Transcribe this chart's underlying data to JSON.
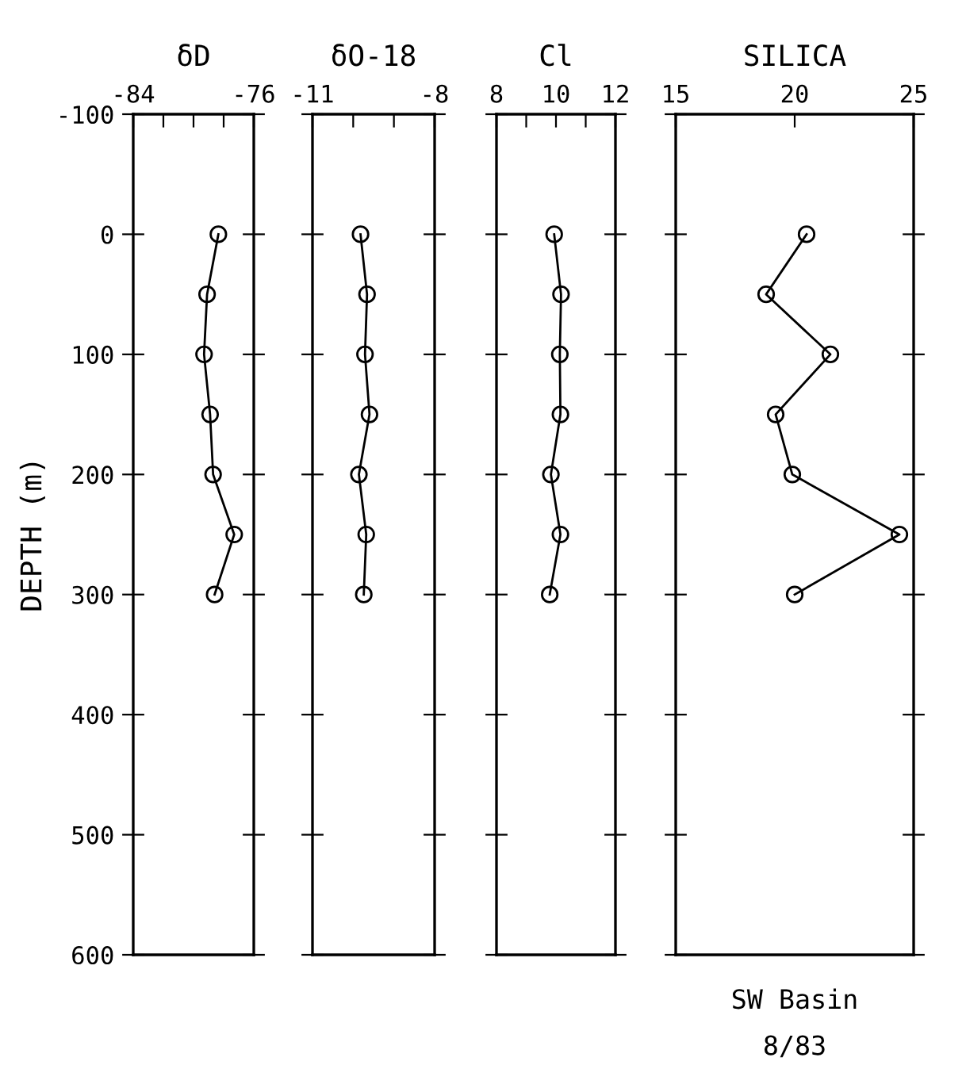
{
  "chart_data": [
    {
      "type": "line",
      "title": "δD",
      "ylabel": "DEPTH (m)",
      "marker": "circle",
      "line_style": "solid",
      "series": [
        {
          "color": "#000000",
          "x": [
            -78.35,
            -79.1,
            -79.3,
            -78.9,
            -78.7,
            -77.3,
            -78.6
          ],
          "values": [
            0,
            50,
            100,
            150,
            200,
            250,
            300
          ]
        }
      ],
      "xlim": [
        -84,
        -76
      ],
      "xticks": [
        -84,
        {
          "value": -82,
          "label": null
        },
        {
          "value": -80,
          "label": null
        },
        {
          "value": -78,
          "label": null
        },
        -76
      ],
      "ylim": [
        600,
        -100
      ],
      "yticks": [
        -100,
        0,
        100,
        200,
        300,
        400,
        500,
        600
      ]
    },
    {
      "type": "line",
      "title": "δO-18",
      "marker": "circle",
      "line_style": "solid",
      "tick_labels": "x",
      "series": [
        {
          "color": "#000000",
          "x": [
            -9.82,
            -9.66,
            -9.71,
            -9.6,
            -9.86,
            -9.68,
            -9.74
          ],
          "values": [
            0,
            50,
            100,
            150,
            200,
            250,
            300
          ]
        }
      ],
      "xlim": [
        -11,
        -8
      ],
      "xticks": [
        -11,
        {
          "value": -10,
          "label": null
        },
        {
          "value": -9,
          "label": null
        },
        -8
      ],
      "ylim": [
        600,
        -100
      ],
      "yticks": [
        -100,
        0,
        100,
        200,
        300,
        400,
        500,
        600
      ]
    },
    {
      "type": "line",
      "title": "Cl",
      "marker": "circle",
      "line_style": "solid",
      "tick_labels": "x",
      "series": [
        {
          "color": "#000000",
          "x": [
            9.94,
            10.17,
            10.13,
            10.15,
            9.83,
            10.15,
            9.79
          ],
          "values": [
            0,
            50,
            100,
            150,
            200,
            250,
            300
          ]
        }
      ],
      "xlim": [
        8,
        12
      ],
      "xticks": [
        8,
        {
          "value": 9,
          "label": null
        },
        10,
        {
          "value": 11,
          "label": null
        },
        12
      ],
      "ylim": [
        600,
        -100
      ],
      "yticks": [
        -100,
        0,
        100,
        200,
        300,
        400,
        500,
        600
      ]
    },
    {
      "type": "line",
      "title": "SILICA",
      "marker": "circle",
      "line_style": "solid",
      "tick_labels": "x",
      "series": [
        {
          "color": "#000000",
          "x": [
            20.5,
            18.8,
            21.5,
            19.2,
            19.9,
            24.4,
            20.0
          ],
          "values": [
            0,
            50,
            100,
            150,
            200,
            250,
            300
          ]
        }
      ],
      "xlim": [
        15,
        25
      ],
      "xticks": [
        15,
        20,
        25
      ],
      "ylim": [
        600,
        -100
      ],
      "yticks": [
        -100,
        0,
        100,
        200,
        300,
        400,
        500,
        600
      ],
      "annotations": [
        "SW Basin",
        "8/83"
      ]
    }
  ]
}
